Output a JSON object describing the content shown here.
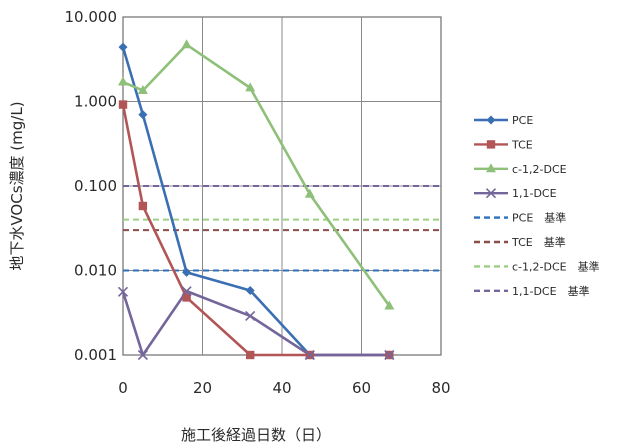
{
  "chart_data": {
    "type": "line",
    "xlabel": "施工後経過日数（日）",
    "ylabel": "地下水VOCs濃度 (mg/L)",
    "xlim": [
      0,
      80
    ],
    "ylim": [
      0.001,
      10
    ],
    "yscale": "log",
    "xticks": [
      "0",
      "20",
      "40",
      "60",
      "80"
    ],
    "yticks": [
      "0.001",
      "0.010",
      "0.100",
      "1.000",
      "10.000"
    ],
    "ytick_values": [
      0.001,
      0.01,
      0.1,
      1,
      10
    ],
    "xtick_values": [
      0,
      20,
      40,
      60,
      80
    ],
    "legend_position": "right",
    "series": [
      {
        "name": "PCE",
        "kind": "line",
        "color": "#3a6fb3",
        "marker": "diamond",
        "x": [
          0,
          5,
          16,
          32,
          47,
          67
        ],
        "y": [
          4.4,
          0.7,
          0.0095,
          0.0058,
          0.001,
          0.001
        ]
      },
      {
        "name": "TCE",
        "kind": "line",
        "color": "#b25556",
        "marker": "square",
        "x": [
          0,
          5,
          16,
          32,
          47,
          67
        ],
        "y": [
          0.92,
          0.058,
          0.0048,
          0.001,
          0.001,
          0.001
        ]
      },
      {
        "name": "c-1,2-DCE",
        "kind": "line",
        "color": "#8fc07a",
        "marker": "triangle",
        "x": [
          0,
          5,
          16,
          32,
          47,
          67
        ],
        "y": [
          1.7,
          1.35,
          4.7,
          1.45,
          0.08,
          0.0038
        ]
      },
      {
        "name": "1,1-DCE",
        "kind": "line",
        "color": "#74669a",
        "marker": "x",
        "x": [
          0,
          5,
          16,
          32,
          47,
          67
        ],
        "y": [
          0.0056,
          0.001,
          0.0057,
          0.0029,
          0.001,
          0.001
        ]
      },
      {
        "name": "PCE　基準",
        "kind": "hline",
        "color": "#2e6fbd",
        "value": 0.01
      },
      {
        "name": "TCE　基準",
        "kind": "hline",
        "color": "#8c4d49",
        "value": 0.03
      },
      {
        "name": "c-1,2-DCE　基準",
        "kind": "hline",
        "color": "#9ccf84",
        "value": 0.04
      },
      {
        "name": "1,1-DCE　基準",
        "kind": "hline",
        "color": "#76659e",
        "value": 0.1
      }
    ]
  }
}
